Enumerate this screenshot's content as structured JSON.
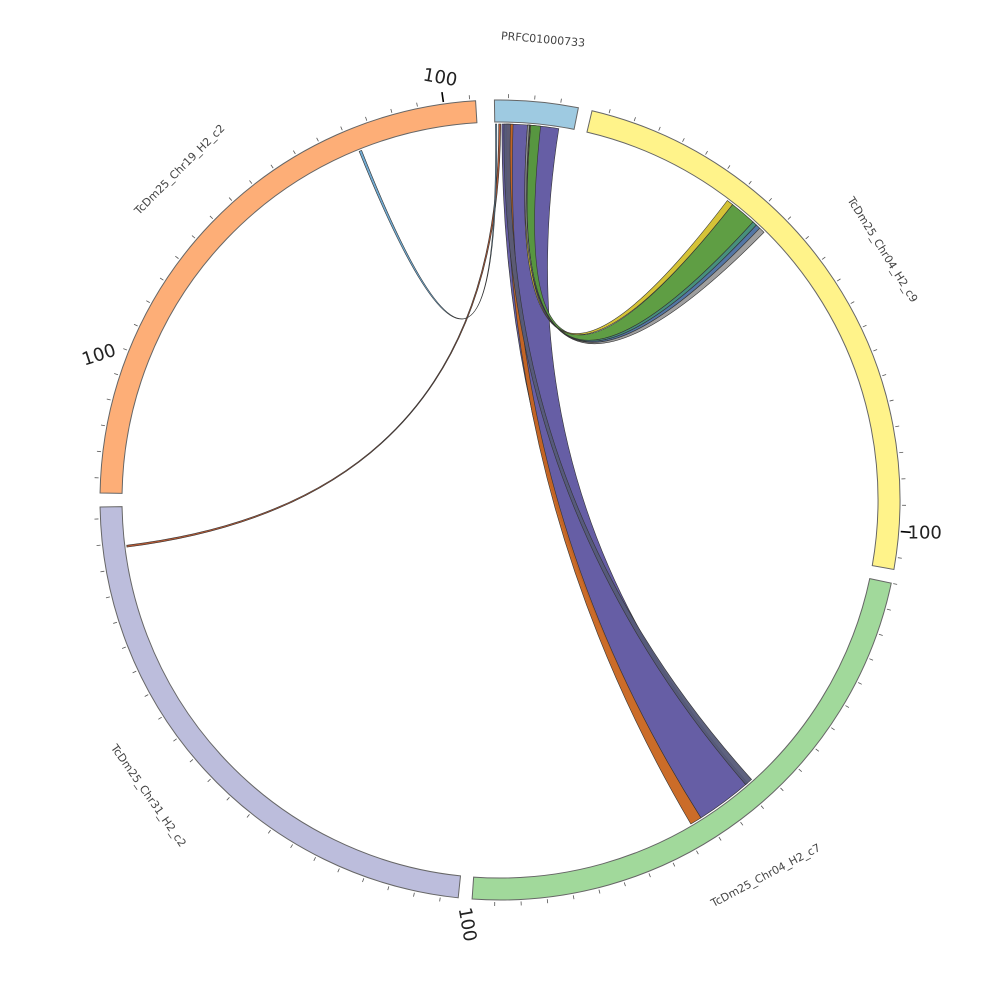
{
  "diagram": {
    "type": "circos",
    "segments": [
      {
        "id": "PRFC01000733",
        "label": "PRFC01000733",
        "color": "#9ecae1"
      },
      {
        "id": "TcDm25_Chr04_H2_c9",
        "label": "TcDm25_Chr04_H2_c9",
        "color": "#fff38a",
        "tick_label": "100"
      },
      {
        "id": "TcDm25_Chr04_H2_c7",
        "label": "TcDm25_Chr04_H2_c7",
        "color": "#a1d99b",
        "tick_label": "100"
      },
      {
        "id": "TcDm25_Chr31_H2_c2",
        "label": "TcDm25_Chr31_H2_c2",
        "color": "#bcbddc",
        "tick_label": "100"
      },
      {
        "id": "TcDm25_Chr19_H2_c2",
        "label": "TcDm25_Chr19_H2_c2",
        "color": "#fdae77",
        "tick_label": "100"
      }
    ],
    "links": [
      {
        "from": "PRFC01000733",
        "to": "TcDm25_Chr04_H2_c7",
        "color": "#5e55a0"
      },
      {
        "from": "PRFC01000733",
        "to": "TcDm25_Chr04_H2_c7",
        "color": "#c8641e"
      },
      {
        "from": "PRFC01000733",
        "to": "TcDm25_Chr04_H2_c7",
        "color": "#555a78"
      },
      {
        "from": "PRFC01000733",
        "to": "TcDm25_Chr04_H2_c9",
        "color": "#56993a"
      },
      {
        "from": "PRFC01000733",
        "to": "TcDm25_Chr04_H2_c9",
        "color": "#d3c02c"
      },
      {
        "from": "PRFC01000733",
        "to": "TcDm25_Chr04_H2_c9",
        "color": "#3d8a75"
      },
      {
        "from": "PRFC01000733",
        "to": "TcDm25_Chr04_H2_c9",
        "color": "#4a6fa0"
      },
      {
        "from": "PRFC01000733",
        "to": "TcDm25_Chr04_H2_c9",
        "color": "#9a9a9a"
      },
      {
        "from": "PRFC01000733",
        "to": "TcDm25_Chr31_H2_c2",
        "color": "#b0502a"
      },
      {
        "from": "PRFC01000733",
        "to": "TcDm25_Chr19_H2_c2",
        "color": "#6aa6d0"
      }
    ]
  }
}
